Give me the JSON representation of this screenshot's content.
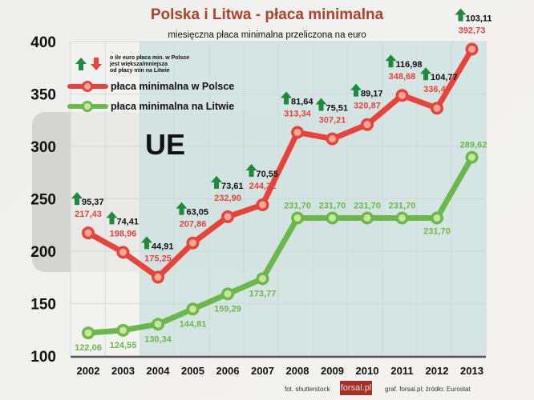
{
  "title": "Polska i Litwa - płaca minimalna",
  "subtitle": "miesięczna płaca minimalna przeliczona na euro",
  "legend": {
    "arrow_note": [
      "o ile euro płaca min. w Polsce",
      "jest większa/mniejsza",
      "od płacy min na Litwie"
    ],
    "poland_label": "płaca minimalna w Polsce",
    "lithuania_label": "płaca minimalna na Litwie"
  },
  "ue_label": "UE",
  "credits": {
    "photo": "fot. shutterstock",
    "logo": "forsal.pl",
    "source": "graf. forsal.pl; źródło: Eurostat"
  },
  "colors": {
    "poland": "#e8433a",
    "lithuania": "#6ab84a",
    "difference_arrow_up": "#1e8a3a",
    "difference_arrow_down": "#e8433a",
    "title": "#b0412b",
    "eu_shading": "#c9e0df"
  },
  "chart_data": {
    "type": "line",
    "title": "Polska i Litwa - płaca minimalna",
    "subtitle": "miesięczna płaca minimalna przeliczona na euro",
    "xlabel": "",
    "ylabel": "",
    "x": [
      "2002",
      "2003",
      "2004",
      "2005",
      "2006",
      "2007",
      "2008",
      "2009",
      "2010",
      "2011",
      "2012",
      "2013"
    ],
    "ylim": [
      100,
      400
    ],
    "yticks": [
      100,
      150,
      200,
      250,
      300,
      350,
      400
    ],
    "grid": true,
    "legend_position": "top-left",
    "shaded_region": {
      "label": "UE",
      "from": "2004",
      "to": "2013"
    },
    "series": [
      {
        "name": "płaca minimalna w Polsce",
        "labels": [
          "217,43",
          "198,96",
          "175,25",
          "207,86",
          "232,90",
          "244,32",
          "313,34",
          "307,21",
          "320,87",
          "348,68",
          "336,47",
          "392,73"
        ],
        "values": [
          217.43,
          198.96,
          175.25,
          207.86,
          232.9,
          244.32,
          313.34,
          307.21,
          320.87,
          348.68,
          336.47,
          392.73
        ]
      },
      {
        "name": "płaca minimalna na Litwie",
        "labels": [
          "122,06",
          "124,55",
          "130,34",
          "144,81",
          "159,29",
          "173,77",
          "231,70",
          "231,70",
          "231,70",
          "231,70",
          "231,70",
          "289,62"
        ],
        "values": [
          122.06,
          124.55,
          130.34,
          144.81,
          159.29,
          173.77,
          231.7,
          231.7,
          231.7,
          231.7,
          231.7,
          289.62
        ]
      },
      {
        "name": "o ile euro płaca min. w Polsce jest większa/mniejsza od płacy min na Litwie",
        "labels": [
          "95,37",
          "74,41",
          "44,91",
          "63,05",
          "73,61",
          "70,55",
          "81,64",
          "75,51",
          "89,17",
          "116,98",
          "104,77",
          "103,11"
        ],
        "values": [
          95.37,
          74.41,
          44.91,
          63.05,
          73.61,
          70.55,
          81.64,
          75.51,
          89.17,
          116.98,
          104.77,
          103.11
        ],
        "direction": [
          "up",
          "up",
          "up",
          "up",
          "up",
          "up",
          "up",
          "up",
          "up",
          "up",
          "up",
          "up"
        ]
      }
    ]
  }
}
